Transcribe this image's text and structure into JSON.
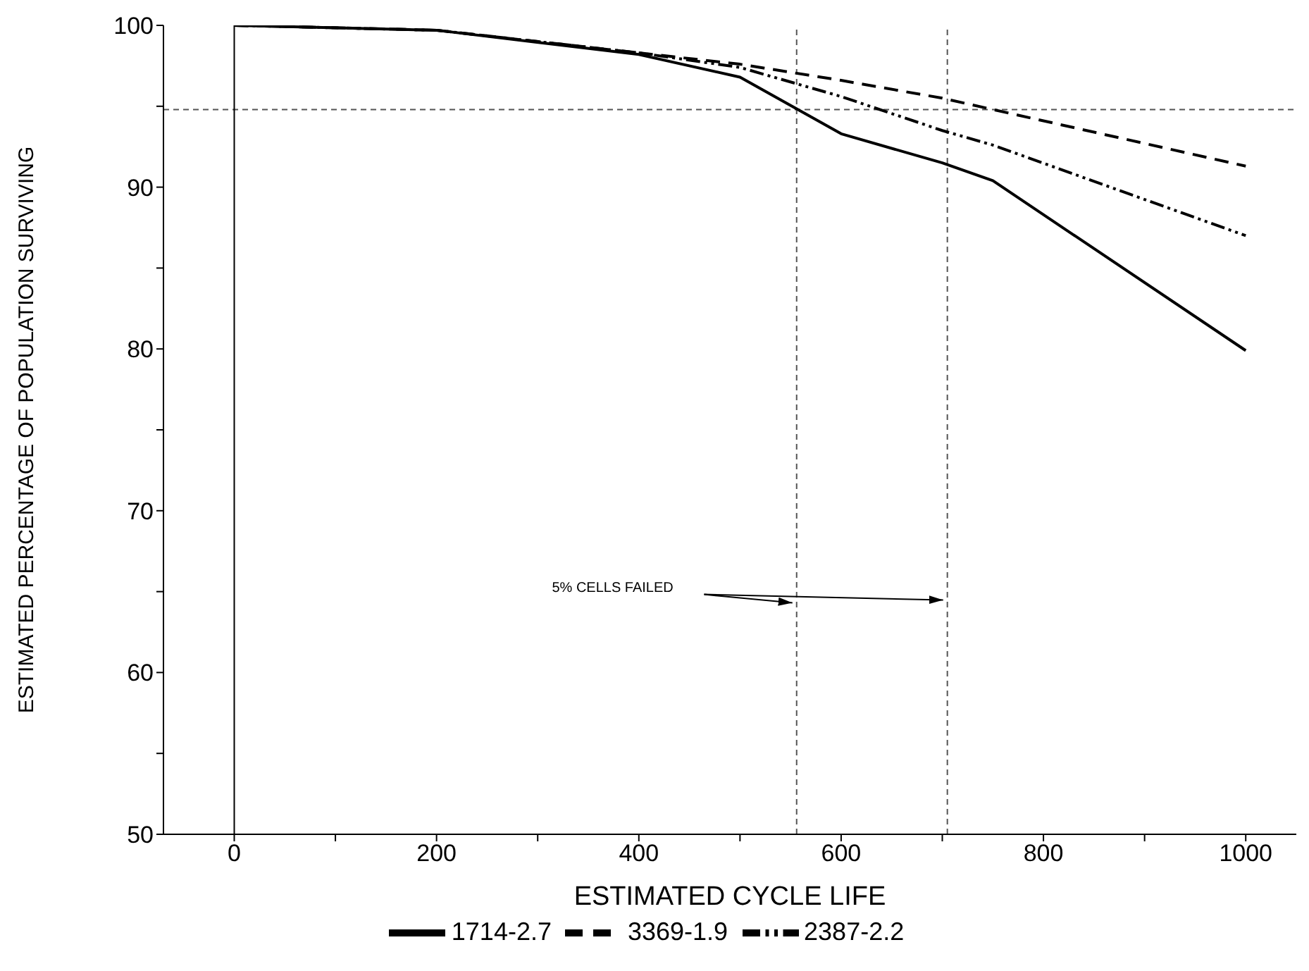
{
  "chart_data": {
    "type": "line",
    "xlabel": "ESTIMATED CYCLE LIFE",
    "ylabel": "ESTIMATED PERCENTAGE OF POPULATION SURVIVING",
    "x": [
      0,
      200,
      400,
      500,
      600,
      700,
      750,
      1000
    ],
    "series": [
      {
        "name": "1714-2.7",
        "color": "#000000",
        "line_style": "solid",
        "values": [
          100,
          99.7,
          98.2,
          96.8,
          93.3,
          91.5,
          90.4,
          79.9
        ]
      },
      {
        "name": "3369-1.9",
        "color": "#000000",
        "line_style": "dashed",
        "values": [
          100,
          99.7,
          98.3,
          97.6,
          96.6,
          95.5,
          94.8,
          91.3
        ]
      },
      {
        "name": "2387-2.2",
        "color": "#000000",
        "line_style": "dotted",
        "values": [
          100,
          99.7,
          98.3,
          97.4,
          95.6,
          93.5,
          92.6,
          87.0
        ]
      }
    ],
    "xlim": [
      -70,
      1050
    ],
    "xticks": [
      0,
      {
        "value": 100,
        "label": null
      },
      200,
      {
        "value": 300,
        "label": null
      },
      400,
      {
        "value": 500,
        "label": null
      },
      600,
      {
        "value": 700,
        "label": null
      },
      800,
      {
        "value": 900,
        "label": null
      },
      1000
    ],
    "ylim": [
      50,
      100
    ],
    "yticks": [
      50,
      {
        "value": 55,
        "label": null
      },
      60,
      {
        "value": 65,
        "label": null
      },
      70,
      {
        "value": 75,
        "label": null
      },
      80,
      {
        "value": 85,
        "label": null
      },
      90,
      {
        "value": 95,
        "label": null
      },
      100
    ],
    "ref_lines": [
      {
        "axis": "y",
        "value": 94.8,
        "color": "#555555",
        "line_style": "dashed"
      },
      {
        "axis": "x",
        "value": 0,
        "color": "#000000",
        "line_style": "solid"
      },
      {
        "axis": "x",
        "value": 556,
        "color": "#555555",
        "line_style": "dashed"
      },
      {
        "axis": "x",
        "value": 705,
        "color": "#555555",
        "line_style": "dashed"
      }
    ],
    "annotations": [
      "5% CELLS FAILED"
    ],
    "grid": false,
    "legend": "bottom",
    "marker": "none"
  }
}
